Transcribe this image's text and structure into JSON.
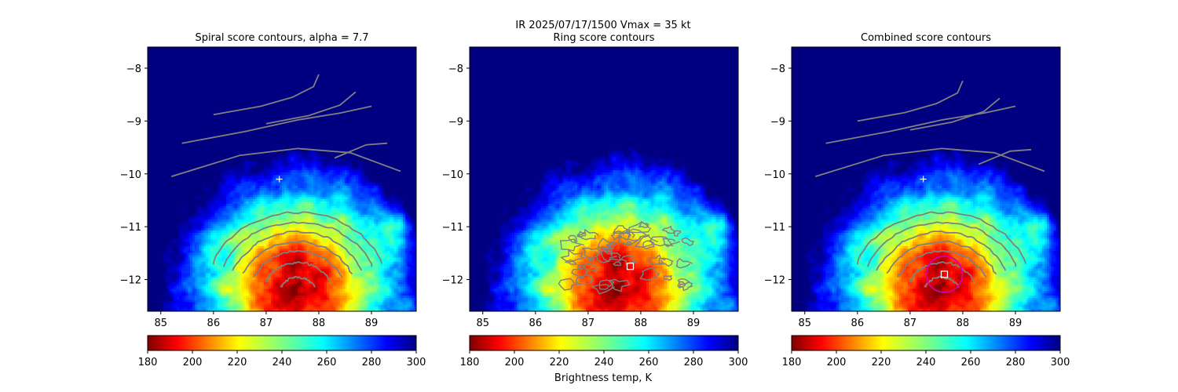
{
  "figure": {
    "suptitle_line1": "IR  2025/07/17/1500    Vmax = 35 kt",
    "colorbar_label": "Brightness temp, K"
  },
  "colors": {
    "contour": "#808080",
    "center_marker": "#ffffff",
    "combined_circle": "#d400aa"
  },
  "chart_data": [
    {
      "type": "heatmap",
      "title": "Spiral score contours, alpha =  7.7",
      "xlim": [
        84.75,
        89.85
      ],
      "ylim": [
        -12.6,
        -7.6
      ],
      "xticks": [
        "85",
        "86",
        "87",
        "88",
        "89"
      ],
      "yticks": [
        "−8",
        "−9",
        "−10",
        "−11",
        "−12"
      ],
      "xtick_values": [
        85,
        86,
        87,
        88,
        89
      ],
      "ytick_values": [
        -8,
        -9,
        -10,
        -11,
        -12
      ],
      "grid": false,
      "overlay": "spiral",
      "first_guess": [
        87.25,
        -10.1
      ],
      "colorbar": {
        "ticks": [
          "180",
          "200",
          "220",
          "240",
          "260",
          "280",
          "300"
        ],
        "range": [
          180,
          300
        ],
        "cmap": "jet_r"
      }
    },
    {
      "type": "heatmap",
      "title": "Ring score contours",
      "xlim": [
        84.75,
        89.85
      ],
      "ylim": [
        -12.6,
        -7.6
      ],
      "xticks": [
        "85",
        "86",
        "87",
        "88",
        "89"
      ],
      "yticks": [
        "−8",
        "−9",
        "−10",
        "−11",
        "−12"
      ],
      "xtick_values": [
        85,
        86,
        87,
        88,
        89
      ],
      "ytick_values": [
        -8,
        -9,
        -10,
        -11,
        -12
      ],
      "grid": false,
      "overlay": "ring",
      "best_ring_center": [
        87.8,
        -11.75
      ],
      "colorbar": {
        "ticks": [
          "180",
          "200",
          "220",
          "240",
          "260",
          "280",
          "300"
        ],
        "range": [
          180,
          300
        ],
        "cmap": "jet_r"
      }
    },
    {
      "type": "heatmap",
      "title": "Combined score contours",
      "xlim": [
        84.75,
        89.85
      ],
      "ylim": [
        -12.6,
        -7.6
      ],
      "xticks": [
        "85",
        "86",
        "87",
        "88",
        "89"
      ],
      "yticks": [
        "−8",
        "−9",
        "−10",
        "−11",
        "−12"
      ],
      "xtick_values": [
        85,
        86,
        87,
        88,
        89
      ],
      "ytick_values": [
        -8,
        -9,
        -10,
        -11,
        -12
      ],
      "grid": false,
      "overlay": "combined",
      "first_guess": [
        87.25,
        -10.1
      ],
      "combined_center": [
        87.65,
        -11.9
      ],
      "colorbar": {
        "ticks": [
          "180",
          "200",
          "220",
          "240",
          "260",
          "280",
          "300"
        ],
        "range": [
          180,
          300
        ],
        "cmap": "jet_r"
      }
    }
  ]
}
